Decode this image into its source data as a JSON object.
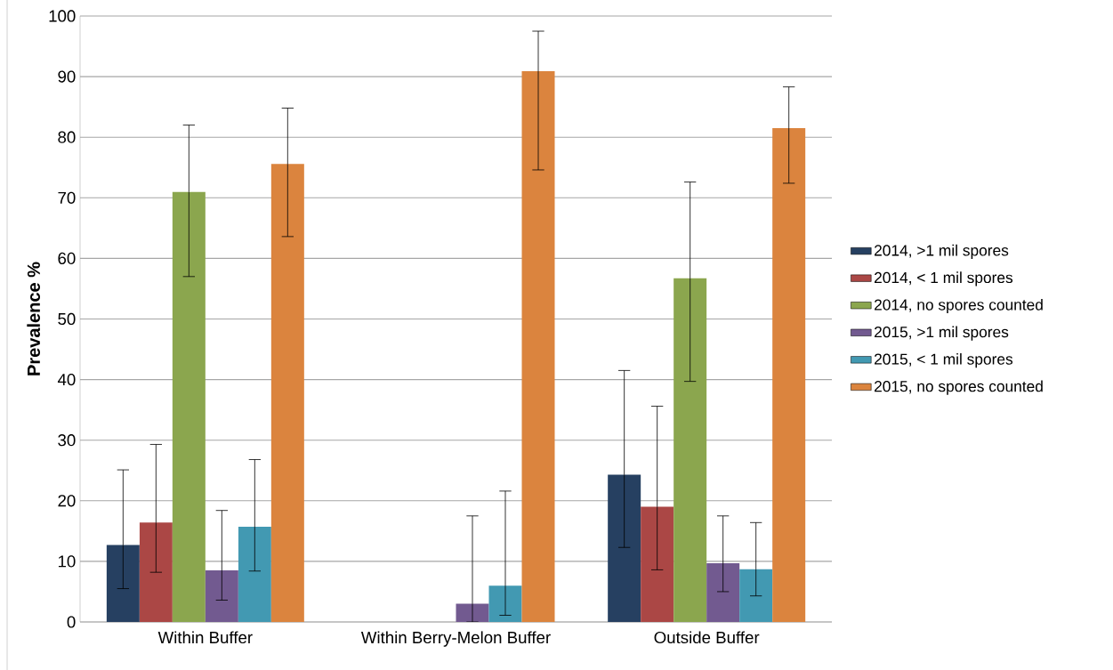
{
  "chart_data": {
    "type": "bar",
    "ylabel": "Prevalence %",
    "categories": [
      "Within Buffer",
      "Within Berry-Melon Buffer",
      "Outside Buffer"
    ],
    "series": [
      {
        "name": "2014, >1 mil spores",
        "color": "#264061",
        "values": [
          12.7,
          null,
          24.3
        ],
        "errors": [
          [
            5.5,
            25.1
          ],
          null,
          [
            12.3,
            41.5
          ]
        ]
      },
      {
        "name": "2014, < 1 mil spores",
        "color": "#ab4745",
        "values": [
          16.4,
          null,
          19.0
        ],
        "errors": [
          [
            8.2,
            29.3
          ],
          null,
          [
            8.6,
            35.6
          ]
        ]
      },
      {
        "name": "2014, no spores counted",
        "color": "#8ba64e",
        "values": [
          71.0,
          null,
          56.7
        ],
        "errors": [
          [
            57.0,
            82.0
          ],
          null,
          [
            39.7,
            72.6
          ]
        ]
      },
      {
        "name": "2015, >1 mil spores",
        "color": "#725a90",
        "values": [
          8.5,
          3.0,
          9.7
        ],
        "errors": [
          [
            3.6,
            18.4
          ],
          [
            0,
            17.5
          ],
          [
            5.0,
            17.5
          ]
        ]
      },
      {
        "name": "2015, < 1 mil spores",
        "color": "#4299b2",
        "values": [
          15.7,
          6.0,
          8.7
        ],
        "errors": [
          [
            8.4,
            26.8
          ],
          [
            1.1,
            21.6
          ],
          [
            4.3,
            16.4
          ]
        ]
      },
      {
        "name": "2015, no spores counted",
        "color": "#db843e",
        "values": [
          75.6,
          90.9,
          81.5
        ],
        "errors": [
          [
            63.6,
            84.8
          ],
          [
            74.6,
            97.5
          ],
          [
            72.4,
            88.3
          ]
        ]
      }
    ],
    "ylim": [
      0,
      100
    ],
    "yticks": [
      0,
      10,
      20,
      30,
      40,
      50,
      60,
      70,
      80,
      90,
      100
    ],
    "grid": "y",
    "legend": "right"
  }
}
